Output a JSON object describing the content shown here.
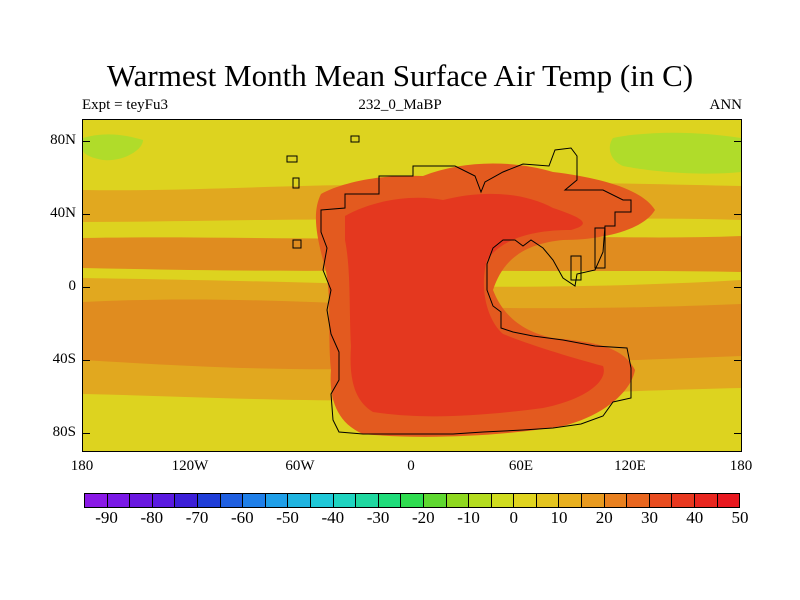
{
  "title": "Warmest Month Mean Surface Air Temp (in C)",
  "subtitle_left": "Expt = teyFu3",
  "subtitle_center": "232_0_MaBP",
  "subtitle_right": "ANN",
  "y_ticks": [
    "80N",
    "40N",
    "0",
    "40S",
    "80S"
  ],
  "x_ticks": [
    "180",
    "120W",
    "60W",
    "0",
    "60E",
    "120E",
    "180"
  ],
  "colorbar": {
    "labels": [
      "-90",
      "-80",
      "-70",
      "-60",
      "-50",
      "-40",
      "-30",
      "-20",
      "-10",
      "0",
      "10",
      "20",
      "30",
      "40",
      "50"
    ],
    "colors": [
      "#8a19e6",
      "#7a19e6",
      "#6a18e0",
      "#5a1ae0",
      "#3c1fd8",
      "#1f3ed8",
      "#1f5fe0",
      "#1f7fe8",
      "#1f9fe8",
      "#1fb4e0",
      "#1fc8d8",
      "#1fd4c0",
      "#1fd8a0",
      "#1fdc7a",
      "#2fdc50",
      "#5fd830",
      "#8fd81f",
      "#b4dc1f",
      "#d0dc1f",
      "#e0d41f",
      "#e4c41f",
      "#e8b01f",
      "#e89a1f",
      "#e8801f",
      "#e8661f",
      "#e84c1f",
      "#e8381f",
      "#e8261f",
      "#e8181f"
    ]
  },
  "map": {
    "projection": "cylindrical-equidistant",
    "lon_range": [
      -180,
      180
    ],
    "lat_range": [
      -90,
      90
    ],
    "colors": {
      "polar_green": "#b0dc2a",
      "yellow": "#ddd31f",
      "ocean_orange": "#e1a81f",
      "warm_orange": "#e08c1f",
      "land_orange": "#e35a1f",
      "hot_red": "#e4381f"
    }
  }
}
